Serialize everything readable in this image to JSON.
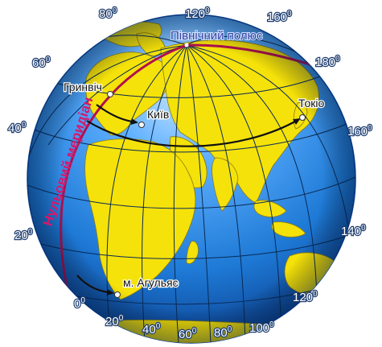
{
  "labels": {
    "north_pole": "Північний полюс",
    "prime_meridian": "Нульовий меридіан",
    "greenwich": "Гринвіч",
    "kyiv": "Київ",
    "tokyo": "Токіо",
    "agulhas": "м. Агульяс"
  },
  "degrees": {
    "d80_top": "80",
    "d120_top": "120",
    "d160_top": "160",
    "d60_left": "60",
    "d180_right": "180",
    "d40_left": "40",
    "d160_right": "160",
    "d20_left": "20",
    "d140_right": "140",
    "d0_bottom": "0",
    "d120_bottom": "120",
    "d20_bottom": "20",
    "d40_bottom": "40",
    "d60_bottom": "60",
    "d80_bottom": "80",
    "d100_bottom": "100"
  },
  "colors": {
    "ocean": "#1e7ad6",
    "land": "#f5e20a",
    "meridian": "#b01050",
    "arrows": "#111111"
  }
}
